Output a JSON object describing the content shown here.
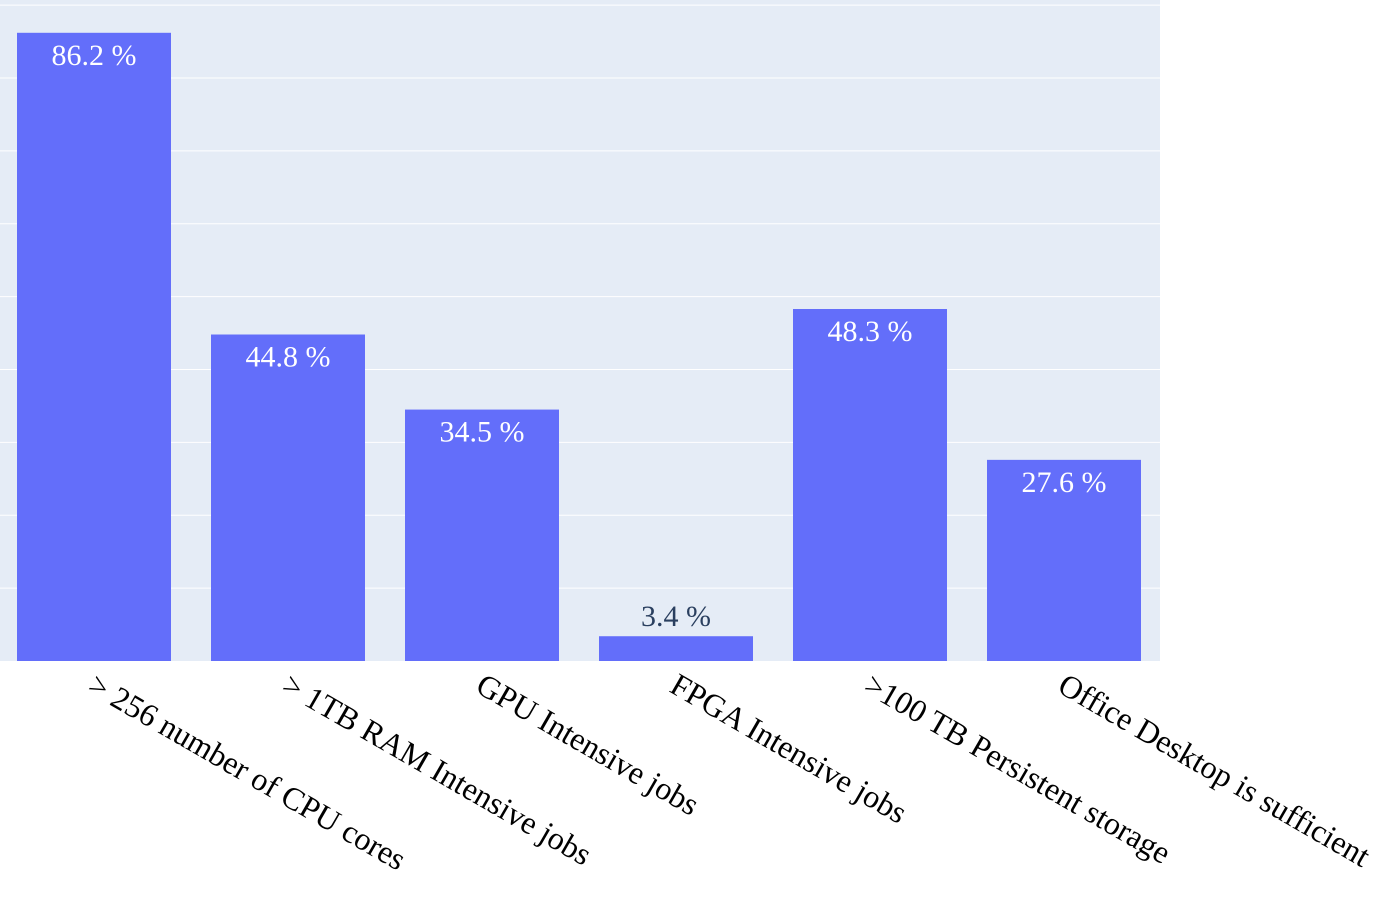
{
  "chart_data": {
    "type": "bar",
    "categories": [
      "> 256 number of CPU cores",
      "> 1TB RAM Intensive jobs",
      "GPU Intensive jobs",
      "FPGA Intensive jobs",
      ">100 TB Persistent storage",
      "Office Desktop is sufficient"
    ],
    "values": [
      86.2,
      44.8,
      34.5,
      3.4,
      48.3,
      27.6
    ],
    "data_labels": [
      "86.2 %",
      "44.8 %",
      "34.5 %",
      "3.4 %",
      "48.3 %",
      "27.6 %"
    ],
    "title": "",
    "xlabel": "",
    "ylabel": "",
    "ylim": [
      0,
      90.7
    ],
    "grid": true,
    "tick_label_rotation_deg": 30,
    "colors": {
      "bar": "#636efa",
      "plot_background": "#e5ecf6",
      "gridline": "#ffffff",
      "label_inside": "#ffffff",
      "label_outside": "#2a3f5f"
    }
  }
}
